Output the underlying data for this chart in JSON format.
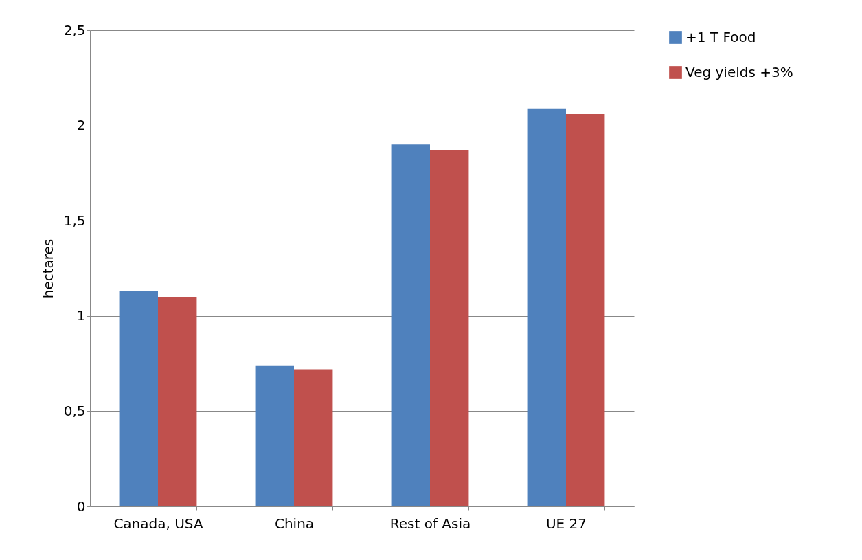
{
  "chart_data": {
    "type": "bar",
    "ylabel": "hectares",
    "categories": [
      "Canada, USA",
      "China",
      "Rest of Asia",
      "UE 27"
    ],
    "series": [
      {
        "name": "+1 T Food",
        "color": "#4f81bd",
        "values": [
          1.13,
          0.74,
          1.9,
          2.09
        ]
      },
      {
        "name": "Veg yields +3%",
        "color": "#c0504d",
        "values": [
          1.1,
          0.72,
          1.87,
          2.06
        ]
      }
    ],
    "ylim": [
      0,
      2.5
    ],
    "yticks": [
      0,
      {
        "value": 0.5,
        "label": "0,5"
      },
      1,
      {
        "value": 1.5,
        "label": "1,5"
      },
      2,
      {
        "value": 2.5,
        "label": "2,5"
      }
    ],
    "grid": "y",
    "legend": "right"
  }
}
